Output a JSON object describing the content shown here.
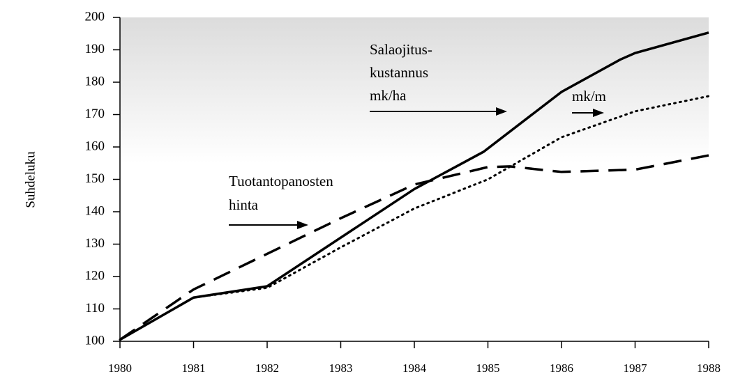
{
  "chart_data": {
    "type": "line",
    "y_label": "Suhdeluku",
    "xlim": [
      1980,
      1988
    ],
    "xticks": [
      1980,
      1981,
      1982,
      1983,
      1984,
      1985,
      1986,
      1987,
      1988
    ],
    "ylim": [
      100,
      200
    ],
    "yticks": [
      100,
      110,
      120,
      130,
      140,
      150,
      160,
      170,
      180,
      190,
      200
    ],
    "series": [
      {
        "color": "#000000",
        "dash": "solid",
        "x": [
          1980,
          1981,
          1982,
          1984,
          1984.94,
          1986,
          1986.8,
          1987,
          1988
        ],
        "values": [
          100.5,
          113.5,
          117,
          147,
          158.5,
          177,
          187,
          189,
          195.3
        ]
      },
      {
        "color": "#000000",
        "dash": "dotted",
        "x": [
          1980,
          1981,
          1982,
          1983,
          1984,
          1985,
          1986,
          1987,
          1988
        ],
        "values": [
          100.5,
          113.5,
          116.5,
          129,
          141,
          150,
          163,
          171,
          175.7
        ]
      },
      {
        "color": "#000000",
        "dash": "dashed",
        "x": [
          1980,
          1981,
          1982,
          1983,
          1984,
          1985,
          1985.3,
          1986,
          1987,
          1988
        ],
        "values": [
          100.5,
          116,
          127,
          138,
          148.4,
          153.8,
          154,
          152.3,
          153,
          157.4
        ]
      }
    ],
    "annotations": [
      {
        "lines": [
          "Salaojitus-",
          "kustannus",
          "mk/ha"
        ]
      },
      {
        "lines": [
          "mk/m"
        ]
      },
      {
        "lines": [
          "Tuotantopanosten",
          "hinta"
        ]
      }
    ]
  }
}
